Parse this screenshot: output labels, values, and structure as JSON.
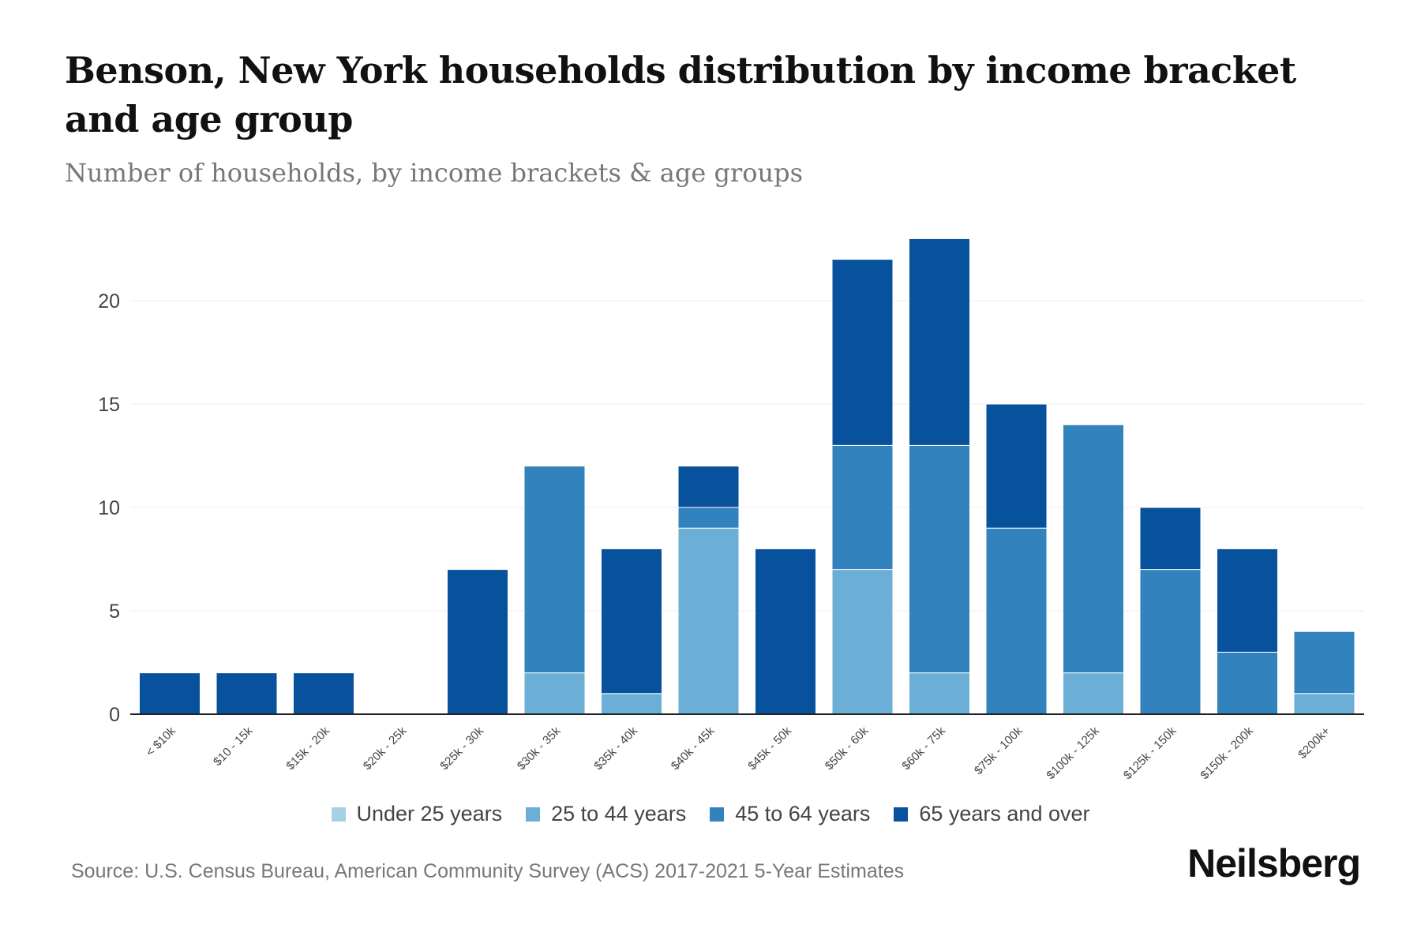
{
  "title": "Benson, New York households distribution by income bracket and age group",
  "subtitle": "Number of households, by income brackets & age groups",
  "source": "Source: U.S. Census Bureau, American Community Survey (ACS) 2017-2021 5-Year Estimates",
  "logo": "Neilsberg",
  "chart_data": {
    "type": "bar",
    "stacked": true,
    "categories": [
      "< $10k",
      "$10 - 15k",
      "$15k - 20k",
      "$20k - 25k",
      "$25k - 30k",
      "$30k - 35k",
      "$35k - 40k",
      "$40k - 45k",
      "$45k - 50k",
      "$50k - 60k",
      "$60k - 75k",
      "$75k - 100k",
      "$100k - 125k",
      "$125k - 150k",
      "$150k - 200k",
      "$200k+"
    ],
    "series": [
      {
        "name": "Under 25 years",
        "color": "#a6d0e6",
        "values": [
          0,
          0,
          0,
          0,
          0,
          0,
          0,
          0,
          0,
          0,
          0,
          0,
          0,
          0,
          0,
          0
        ]
      },
      {
        "name": "25 to 44 years",
        "color": "#6baed6",
        "values": [
          0,
          0,
          0,
          0,
          0,
          2,
          1,
          9,
          0,
          7,
          2,
          0,
          2,
          0,
          0,
          1
        ]
      },
      {
        "name": "45 to 64 years",
        "color": "#3182bd",
        "values": [
          0,
          0,
          0,
          0,
          0,
          10,
          0,
          1,
          0,
          6,
          11,
          9,
          12,
          7,
          3,
          3
        ]
      },
      {
        "name": "65 years and over",
        "color": "#08519c",
        "values": [
          2,
          2,
          2,
          0,
          7,
          0,
          7,
          2,
          8,
          9,
          10,
          6,
          0,
          3,
          5,
          0
        ]
      }
    ],
    "yticks": [
      "0",
      "5",
      "10",
      "15",
      "20"
    ],
    "ylim": [
      0,
      23
    ],
    "grid": true,
    "legend": "bottom"
  }
}
